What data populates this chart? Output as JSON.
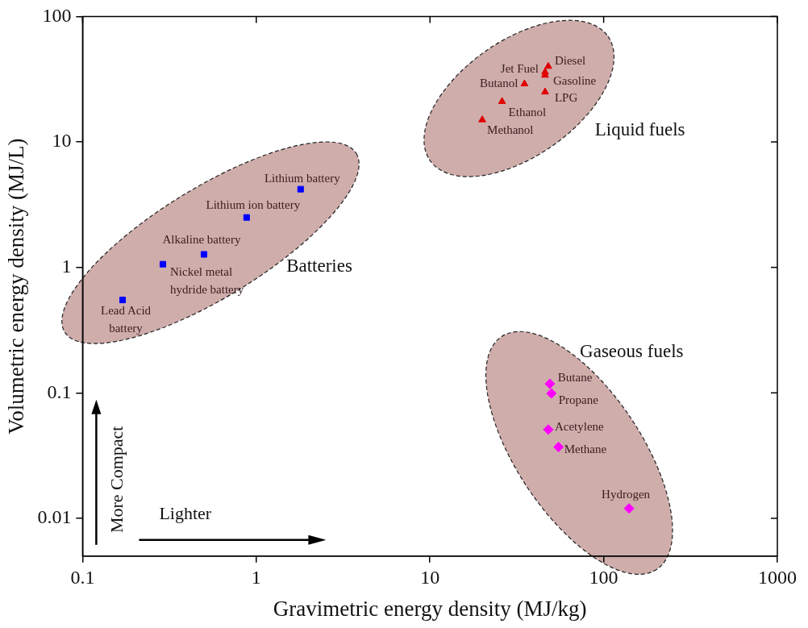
{
  "chart_data": {
    "type": "scatter",
    "xlabel": "Gravimetric energy density (MJ/kg)",
    "ylabel": "Volumetric energy density (MJ/L)",
    "log": "xy",
    "legend": false,
    "xlim": [
      0.1,
      1000
    ],
    "xticks": [
      0.1,
      1,
      10,
      100,
      1000
    ],
    "ylim": [
      0.005,
      100
    ],
    "yticks": [
      0.01,
      0.1,
      1,
      10,
      100
    ],
    "series": [
      {
        "name": "Batteries",
        "color": "#0000ff",
        "marker": "square",
        "x": [
          1.8,
          0.88,
          0.5,
          0.29,
          0.17
        ],
        "values": [
          4.2,
          2.5,
          1.27,
          1.06,
          0.55
        ]
      },
      {
        "name": "Liquid fuels",
        "color": "#e00000",
        "marker": "triangle",
        "x": [
          46,
          48,
          46,
          46,
          35,
          26,
          20
        ],
        "values": [
          36,
          40,
          34,
          25,
          29,
          21,
          15
        ]
      },
      {
        "name": "Gaseous fuels",
        "color": "#ff00ff",
        "marker": "diamond",
        "x": [
          49,
          50,
          48,
          55,
          140
        ],
        "values": [
          0.118,
          0.099,
          0.051,
          0.037,
          0.012
        ]
      }
    ],
    "annotations": [
      {
        "text": "Lithium battery",
        "x": 1.8,
        "y": 4.2
      },
      {
        "text": "Lithium ion battery",
        "x": 0.88,
        "y": 2.5
      },
      {
        "text": "Alkaline battery",
        "x": 0.5,
        "y": 1.27
      },
      {
        "text": "Nickel metal\nhydride battery",
        "x": 0.29,
        "y": 1.06
      },
      {
        "text": "Lead Acid\nbattery",
        "x": 0.17,
        "y": 0.55
      },
      {
        "text": "Jet Fuel",
        "x": 46,
        "y": 36
      },
      {
        "text": "Diesel",
        "x": 48,
        "y": 40
      },
      {
        "text": "Gasoline",
        "x": 46,
        "y": 34
      },
      {
        "text": "LPG",
        "x": 46,
        "y": 25
      },
      {
        "text": "Butanol",
        "x": 35,
        "y": 29
      },
      {
        "text": "Ethanol",
        "x": 26,
        "y": 21
      },
      {
        "text": "Methanol",
        "x": 20,
        "y": 15
      },
      {
        "text": "Butane",
        "x": 49,
        "y": 0.118
      },
      {
        "text": "Propane",
        "x": 50,
        "y": 0.099
      },
      {
        "text": "Acetylene",
        "x": 48,
        "y": 0.051
      },
      {
        "text": "Methane",
        "x": 55,
        "y": 0.037
      },
      {
        "text": "Hydrogen",
        "x": 140,
        "y": 0.012
      },
      "More Compact",
      "Lighter"
    ]
  }
}
